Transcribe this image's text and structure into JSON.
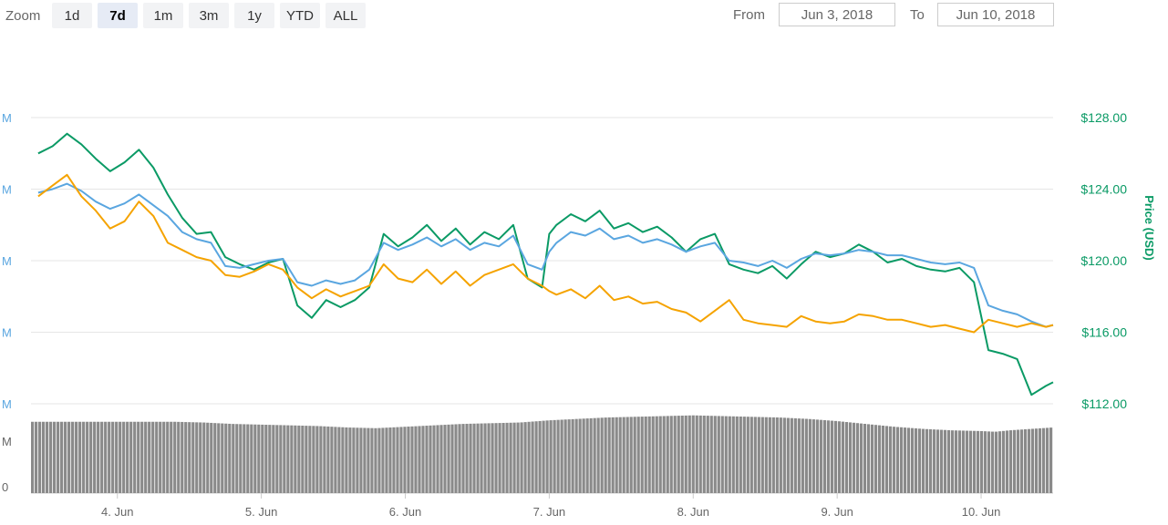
{
  "toolbar": {
    "zoom_label": "Zoom",
    "zoom_buttons": [
      "1d",
      "7d",
      "1m",
      "3m",
      "1y",
      "YTD",
      "ALL"
    ],
    "active_zoom": "7d",
    "from_label": "From",
    "from_value": "Jun 3, 2018",
    "to_label": "To",
    "to_value": "Jun 10, 2018"
  },
  "colors": {
    "price_usd": "#0a9a65",
    "price_blue": "#5aa6e0",
    "price_orange": "#f5a300",
    "volume": "#8a8a8a",
    "grid": "#e6e6e6"
  },
  "chart_data": {
    "type": "line",
    "x_ticks": [
      "4. Jun",
      "5. Jun",
      "6. Jun",
      "7. Jun",
      "8. Jun",
      "9. Jun",
      "10. Jun"
    ],
    "x_range": [
      3.4,
      10.5
    ],
    "y_right_label": "Price (USD)",
    "y_right_ticks": [
      "$112.00",
      "$116.00",
      "$120.00",
      "$124.00",
      "$128.00"
    ],
    "y_right_ticks_values": [
      112,
      116,
      120,
      124,
      128
    ],
    "y_right_range": [
      112,
      128
    ],
    "y_left_ticks": [
      "M",
      "M",
      "M",
      "M",
      "M"
    ],
    "y_left_volume_ticks": [
      "M",
      "0"
    ],
    "grid": true,
    "series": [
      {
        "color_key": "price_usd",
        "x": [
          3.45,
          3.55,
          3.65,
          3.75,
          3.85,
          3.95,
          4.05,
          4.15,
          4.25,
          4.35,
          4.45,
          4.55,
          4.65,
          4.75,
          4.85,
          4.95,
          5.05,
          5.15,
          5.25,
          5.35,
          5.45,
          5.55,
          5.65,
          5.75,
          5.85,
          5.95,
          6.05,
          6.15,
          6.25,
          6.35,
          6.45,
          6.55,
          6.65,
          6.75,
          6.85,
          6.95,
          7.0,
          7.05,
          7.15,
          7.25,
          7.35,
          7.45,
          7.55,
          7.65,
          7.75,
          7.85,
          7.95,
          8.05,
          8.15,
          8.25,
          8.35,
          8.45,
          8.55,
          8.65,
          8.75,
          8.85,
          8.95,
          9.05,
          9.15,
          9.25,
          9.35,
          9.45,
          9.55,
          9.65,
          9.75,
          9.85,
          9.95,
          10.05,
          10.15,
          10.25,
          10.35,
          10.45,
          10.5
        ],
        "y": [
          126.0,
          126.4,
          127.1,
          126.5,
          125.7,
          125.0,
          125.5,
          126.2,
          125.2,
          123.7,
          122.4,
          121.5,
          121.6,
          120.2,
          119.8,
          119.5,
          119.9,
          120.1,
          117.5,
          116.8,
          117.8,
          117.4,
          117.8,
          118.5,
          121.5,
          120.8,
          121.3,
          122.0,
          121.1,
          121.8,
          120.9,
          121.6,
          121.2,
          122.0,
          119.0,
          118.5,
          121.5,
          122.0,
          122.6,
          122.2,
          122.8,
          121.8,
          122.1,
          121.6,
          121.9,
          121.3,
          120.5,
          121.2,
          121.5,
          119.8,
          119.5,
          119.3,
          119.7,
          119.0,
          119.8,
          120.5,
          120.2,
          120.4,
          120.9,
          120.5,
          119.9,
          120.1,
          119.7,
          119.5,
          119.4,
          119.6,
          118.8,
          115.0,
          114.8,
          114.5,
          112.5,
          113.0,
          113.2
        ]
      },
      {
        "color_key": "price_blue",
        "x": [
          3.45,
          3.55,
          3.65,
          3.75,
          3.85,
          3.95,
          4.05,
          4.15,
          4.25,
          4.35,
          4.45,
          4.55,
          4.65,
          4.75,
          4.85,
          4.95,
          5.05,
          5.15,
          5.25,
          5.35,
          5.45,
          5.55,
          5.65,
          5.75,
          5.85,
          5.95,
          6.05,
          6.15,
          6.25,
          6.35,
          6.45,
          6.55,
          6.65,
          6.75,
          6.85,
          6.95,
          7.0,
          7.05,
          7.15,
          7.25,
          7.35,
          7.45,
          7.55,
          7.65,
          7.75,
          7.85,
          7.95,
          8.05,
          8.15,
          8.25,
          8.35,
          8.45,
          8.55,
          8.65,
          8.75,
          8.85,
          8.95,
          9.05,
          9.15,
          9.25,
          9.35,
          9.45,
          9.55,
          9.65,
          9.75,
          9.85,
          9.95,
          10.05,
          10.15,
          10.25,
          10.35,
          10.45,
          10.5
        ],
        "y": [
          123.8,
          124.0,
          124.3,
          123.9,
          123.3,
          122.9,
          123.2,
          123.7,
          123.1,
          122.5,
          121.6,
          121.2,
          121.0,
          119.7,
          119.6,
          119.8,
          120.0,
          120.1,
          118.8,
          118.6,
          118.9,
          118.7,
          118.9,
          119.5,
          121.0,
          120.6,
          120.9,
          121.3,
          120.8,
          121.2,
          120.6,
          121.0,
          120.8,
          121.4,
          119.8,
          119.5,
          120.5,
          121.0,
          121.6,
          121.4,
          121.8,
          121.2,
          121.4,
          121.0,
          121.2,
          120.9,
          120.5,
          120.8,
          121.0,
          120.0,
          119.9,
          119.7,
          120.0,
          119.6,
          120.1,
          120.4,
          120.3,
          120.4,
          120.6,
          120.5,
          120.3,
          120.3,
          120.1,
          119.9,
          119.8,
          119.9,
          119.6,
          117.5,
          117.2,
          117.0,
          116.6,
          116.3,
          116.4
        ]
      },
      {
        "color_key": "price_orange",
        "x": [
          3.45,
          3.55,
          3.65,
          3.75,
          3.85,
          3.95,
          4.05,
          4.15,
          4.25,
          4.35,
          4.45,
          4.55,
          4.65,
          4.75,
          4.85,
          4.95,
          5.05,
          5.15,
          5.25,
          5.35,
          5.45,
          5.55,
          5.65,
          5.75,
          5.85,
          5.95,
          6.05,
          6.15,
          6.25,
          6.35,
          6.45,
          6.55,
          6.65,
          6.75,
          6.85,
          6.95,
          7.0,
          7.05,
          7.15,
          7.25,
          7.35,
          7.45,
          7.55,
          7.65,
          7.75,
          7.85,
          7.95,
          8.05,
          8.15,
          8.25,
          8.35,
          8.45,
          8.55,
          8.65,
          8.75,
          8.85,
          8.95,
          9.05,
          9.15,
          9.25,
          9.35,
          9.45,
          9.55,
          9.65,
          9.75,
          9.85,
          9.95,
          10.05,
          10.15,
          10.25,
          10.35,
          10.45,
          10.5
        ],
        "y": [
          123.6,
          124.2,
          124.8,
          123.6,
          122.8,
          121.8,
          122.2,
          123.3,
          122.5,
          121.0,
          120.6,
          120.2,
          120.0,
          119.2,
          119.1,
          119.4,
          119.8,
          119.5,
          118.5,
          117.9,
          118.4,
          118.0,
          118.3,
          118.6,
          119.8,
          119.0,
          118.8,
          119.5,
          118.7,
          119.4,
          118.6,
          119.2,
          119.5,
          119.8,
          119.0,
          118.6,
          118.3,
          118.1,
          118.4,
          117.9,
          118.6,
          117.8,
          118.0,
          117.6,
          117.7,
          117.3,
          117.1,
          116.6,
          117.2,
          117.8,
          116.7,
          116.5,
          116.4,
          116.3,
          116.9,
          116.6,
          116.5,
          116.6,
          117.0,
          116.9,
          116.7,
          116.7,
          116.5,
          116.3,
          116.4,
          116.2,
          116.0,
          116.7,
          116.5,
          116.3,
          116.5,
          116.3,
          116.4
        ]
      }
    ],
    "volume": {
      "color_key": "volume",
      "x": [
        3.45,
        3.6,
        3.8,
        4.0,
        4.2,
        4.4,
        4.6,
        4.8,
        5.0,
        5.2,
        5.4,
        5.6,
        5.8,
        6.0,
        6.2,
        6.4,
        6.6,
        6.8,
        7.0,
        7.2,
        7.4,
        7.6,
        7.8,
        8.0,
        8.2,
        8.4,
        8.6,
        8.8,
        9.0,
        9.2,
        9.4,
        9.6,
        9.8,
        10.0,
        10.1,
        10.2,
        10.35,
        10.5
      ],
      "values": [
        1.0,
        1.0,
        1.0,
        1.0,
        1.0,
        1.0,
        0.99,
        0.97,
        0.96,
        0.95,
        0.94,
        0.92,
        0.91,
        0.93,
        0.95,
        0.97,
        0.98,
        0.99,
        1.02,
        1.04,
        1.06,
        1.07,
        1.08,
        1.09,
        1.08,
        1.07,
        1.06,
        1.04,
        1.01,
        0.97,
        0.93,
        0.9,
        0.88,
        0.87,
        0.86,
        0.88,
        0.9,
        0.92
      ]
    }
  }
}
